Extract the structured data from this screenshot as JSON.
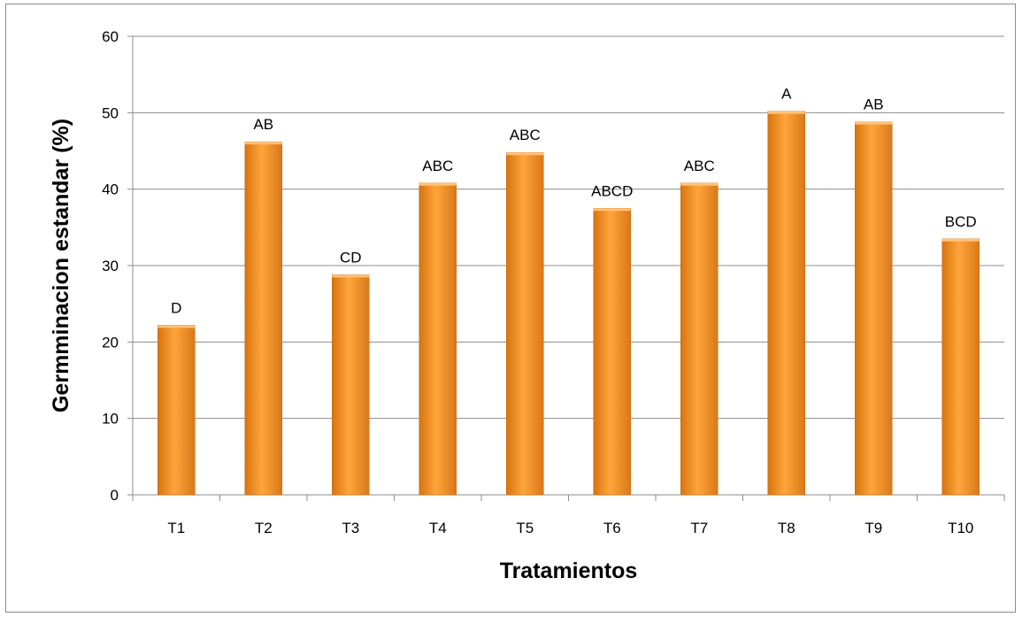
{
  "chart_data": {
    "type": "bar",
    "title": "",
    "xlabel": "Tratamientos",
    "ylabel": "Germminacion estandar (%)",
    "categories": [
      "T1",
      "T2",
      "T3",
      "T4",
      "T5",
      "T6",
      "T7",
      "T8",
      "T9",
      "T10"
    ],
    "values": [
      22.2,
      46.2,
      28.8,
      40.8,
      44.8,
      37.5,
      40.8,
      50.2,
      48.8,
      33.5
    ],
    "data_labels": [
      "D",
      "AB",
      "CD",
      "ABC",
      "ABC",
      "ABCD",
      "ABC",
      "A",
      "AB",
      "BCD"
    ],
    "ylim": [
      0,
      60
    ],
    "yticks": [
      0,
      10,
      20,
      30,
      40,
      50,
      60
    ],
    "grid": true,
    "legend": "none",
    "bar_color": "#f7931e"
  }
}
